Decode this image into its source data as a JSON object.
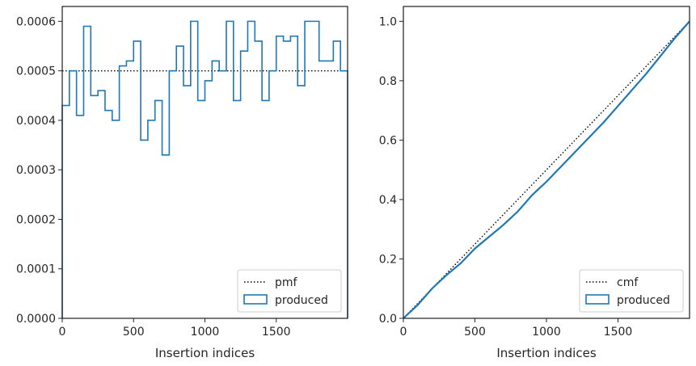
{
  "chart_data": [
    {
      "type": "step",
      "xlabel": "Insertion indices",
      "ylabel": "",
      "xlim": [
        0,
        2000
      ],
      "ylim": [
        0,
        0.00063
      ],
      "xticks": [
        0,
        500,
        1000,
        1500
      ],
      "yticks": [
        "0.0000",
        "0.0001",
        "0.0002",
        "0.0003",
        "0.0004",
        "0.0005",
        "0.0006"
      ],
      "legend_position": "bottom-right",
      "legend": [
        "pmf",
        "produced"
      ],
      "series": [
        {
          "name": "pmf",
          "style": "dotted",
          "color": "#000000",
          "x": [
            0,
            2000
          ],
          "y": [
            0.0005,
            0.0005
          ]
        },
        {
          "name": "produced",
          "style": "step",
          "color": "#1f77b4",
          "bin_width": 50,
          "bin_starts": [
            0,
            50,
            100,
            150,
            200,
            250,
            300,
            350,
            400,
            450,
            500,
            550,
            600,
            650,
            700,
            750,
            800,
            850,
            900,
            950,
            1000,
            1050,
            1100,
            1150,
            1200,
            1250,
            1300,
            1350,
            1400,
            1450,
            1500,
            1550,
            1600,
            1650,
            1700,
            1750,
            1800,
            1850,
            1900,
            1950
          ],
          "values": [
            0.00043,
            0.0005,
            0.00041,
            0.00059,
            0.00045,
            0.00046,
            0.00042,
            0.0004,
            0.00051,
            0.00052,
            0.00056,
            0.00036,
            0.0004,
            0.00044,
            0.00033,
            0.0005,
            0.00055,
            0.00047,
            0.0006,
            0.00044,
            0.00048,
            0.00052,
            0.0005,
            0.0006,
            0.00044,
            0.00054,
            0.0006,
            0.00056,
            0.00044,
            0.0005,
            0.00057,
            0.00056,
            0.00057,
            0.00047,
            0.0006,
            0.0006,
            0.00052,
            0.00052,
            0.00056,
            0.0005
          ]
        }
      ]
    },
    {
      "type": "line",
      "xlabel": "Insertion indices",
      "ylabel": "",
      "xlim": [
        0,
        2000
      ],
      "ylim": [
        0,
        1.05
      ],
      "xticks": [
        0,
        500,
        1000,
        1500
      ],
      "yticks": [
        "0.0",
        "0.2",
        "0.4",
        "0.6",
        "0.8",
        "1.0"
      ],
      "legend_position": "bottom-right",
      "legend": [
        "cmf",
        "produced"
      ],
      "series": [
        {
          "name": "cmf",
          "style": "dotted",
          "color": "#000000",
          "x": [
            0,
            2000
          ],
          "y": [
            0,
            1.0
          ]
        },
        {
          "name": "produced",
          "style": "line",
          "color": "#1f77b4",
          "x": [
            0,
            100,
            200,
            300,
            400,
            500,
            600,
            700,
            800,
            900,
            1000,
            1100,
            1200,
            1300,
            1400,
            1500,
            1600,
            1700,
            1800,
            1900,
            2000
          ],
          "y": [
            0,
            0.045,
            0.1,
            0.145,
            0.185,
            0.235,
            0.275,
            0.315,
            0.36,
            0.415,
            0.46,
            0.51,
            0.56,
            0.61,
            0.66,
            0.715,
            0.77,
            0.825,
            0.885,
            0.945,
            1.0
          ]
        }
      ]
    }
  ]
}
